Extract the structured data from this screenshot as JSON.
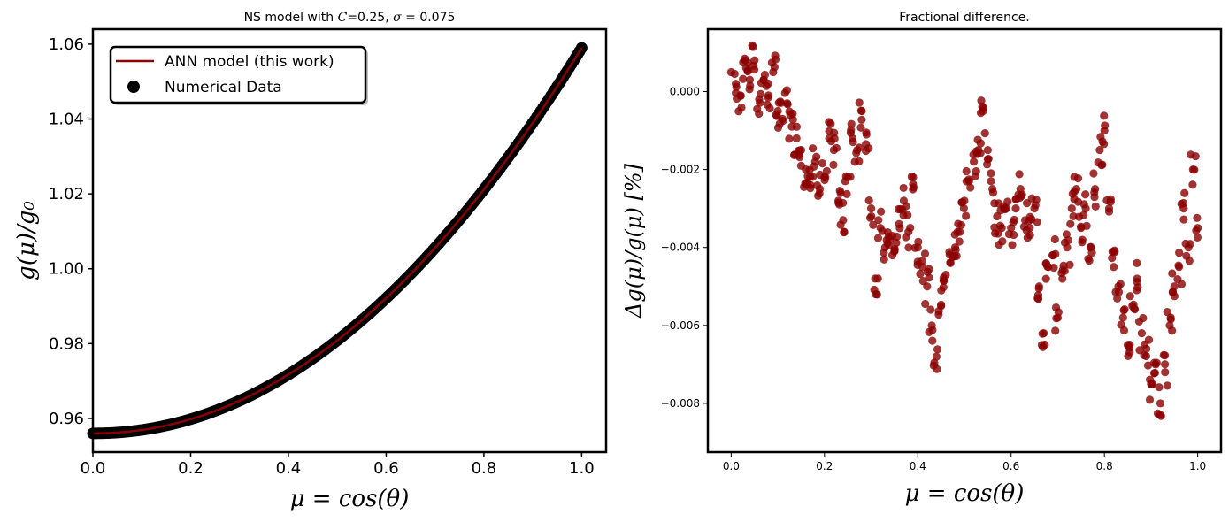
{
  "chart_data": [
    {
      "type": "line",
      "title_prefix": "NS model with ",
      "title_c": "C",
      "title_mid": "=0.25, ",
      "title_sigma": "σ",
      "title_suffix": " = 0.075",
      "xlabel": "μ = cos(θ)",
      "ylabel": "g(μ)/g₀",
      "xlim": [
        0.0,
        1.05
      ],
      "ylim": [
        0.951,
        1.064
      ],
      "xticks": [
        "0.0",
        "0.2",
        "0.4",
        "0.6",
        "0.8",
        "1.0"
      ],
      "yticks": [
        "0.96",
        "0.98",
        "1.00",
        "1.02",
        "1.04",
        "1.06"
      ],
      "legend_position": "top-left",
      "legend": [
        "ANN model (this work)",
        "Numerical Data"
      ],
      "colors": {
        "line": "#8b0000",
        "points": "#000000"
      },
      "series": [
        {
          "name": "ANN model (this work)",
          "x": [
            0.0,
            0.05,
            0.1,
            0.15,
            0.2,
            0.25,
            0.3,
            0.35,
            0.4,
            0.45,
            0.5,
            0.55,
            0.6,
            0.65,
            0.7,
            0.75,
            0.8,
            0.85,
            0.9,
            0.95,
            1.0
          ],
          "y": [
            0.956,
            0.9563,
            0.9572,
            0.9586,
            0.9606,
            0.9632,
            0.9663,
            0.97,
            0.9742,
            0.979,
            0.9843,
            0.9902,
            0.9966,
            1.0036,
            1.0111,
            1.0192,
            1.0278,
            1.037,
            1.0467,
            1.057,
            1.059
          ]
        },
        {
          "name": "Numerical Data",
          "x_range": [
            0.0,
            1.0
          ],
          "y_range": [
            0.956,
            1.059
          ]
        }
      ]
    },
    {
      "type": "scatter",
      "title": "Fractional difference.",
      "xlabel": "μ = cos(θ)",
      "ylabel": "Δg(μ)/g(μ) [%]",
      "xlim": [
        -0.05,
        1.05
      ],
      "ylim": [
        -0.00925,
        0.0016
      ],
      "xticks": [
        "0.0",
        "0.2",
        "0.4",
        "0.6",
        "0.8",
        "1.0"
      ],
      "yticks": [
        "0.000",
        "−0.002",
        "−0.004",
        "−0.006",
        "−0.008"
      ],
      "colors": {
        "points": "#8b0000"
      },
      "series": [
        {
          "name": "Fractional difference",
          "x": [
            0.0,
            0.01,
            0.02,
            0.03,
            0.04,
            0.05,
            0.06,
            0.07,
            0.08,
            0.09,
            0.1,
            0.11,
            0.12,
            0.13,
            0.14,
            0.15,
            0.16,
            0.17,
            0.18,
            0.19,
            0.2,
            0.21,
            0.22,
            0.23,
            0.24,
            0.25,
            0.26,
            0.27,
            0.28,
            0.29,
            0.3,
            0.31,
            0.32,
            0.33,
            0.34,
            0.35,
            0.36,
            0.37,
            0.38,
            0.39,
            0.4,
            0.41,
            0.42,
            0.43,
            0.44,
            0.45,
            0.46,
            0.47,
            0.48,
            0.49,
            0.5,
            0.51,
            0.52,
            0.53,
            0.54,
            0.55,
            0.56,
            0.57,
            0.58,
            0.59,
            0.6,
            0.61,
            0.62,
            0.63,
            0.64,
            0.65,
            0.66,
            0.67,
            0.68,
            0.69,
            0.7,
            0.71,
            0.72,
            0.73,
            0.74,
            0.75,
            0.76,
            0.77,
            0.78,
            0.79,
            0.8,
            0.81,
            0.82,
            0.83,
            0.84,
            0.85,
            0.86,
            0.87,
            0.88,
            0.89,
            0.9,
            0.91,
            0.92,
            0.93,
            0.94,
            0.95,
            0.96,
            0.97,
            0.98,
            0.99,
            1.0
          ],
          "y": [
            0.0005,
            0.0002,
            -0.0001,
            0.0008,
            0.0003,
            0.0008,
            -0.0002,
            0.0003,
            -0.0001,
            0.0005,
            -0.0005,
            -0.0007,
            -0.0003,
            -0.0009,
            -0.0012,
            -0.0015,
            -0.002,
            -0.0024,
            -0.0018,
            -0.0025,
            -0.0022,
            -0.0012,
            -0.0015,
            -0.0028,
            -0.0033,
            -0.0022,
            -0.0012,
            -0.0015,
            -0.0005,
            -0.0011,
            -0.003,
            -0.0052,
            -0.0035,
            -0.004,
            -0.0038,
            -0.0041,
            -0.0034,
            -0.0028,
            -0.0036,
            -0.0022,
            -0.004,
            -0.0045,
            -0.005,
            -0.006,
            -0.0068,
            -0.0055,
            -0.0047,
            -0.0044,
            -0.004,
            -0.0036,
            -0.0028,
            -0.0023,
            -0.0018,
            -0.0015,
            -0.0005,
            -0.0015,
            -0.0025,
            -0.0032,
            -0.0035,
            -0.003,
            -0.0035,
            -0.003,
            -0.0025,
            -0.0033,
            -0.0035,
            -0.003,
            -0.005,
            -0.0062,
            -0.0045,
            -0.0042,
            -0.0058,
            -0.0048,
            -0.004,
            -0.003,
            -0.0025,
            -0.0035,
            -0.003,
            -0.004,
            -0.0025,
            -0.0015,
            -0.001,
            -0.003,
            -0.0045,
            -0.005,
            -0.0058,
            -0.0065,
            -0.0055,
            -0.0048,
            -0.0062,
            -0.0066,
            -0.0075,
            -0.007,
            -0.008,
            -0.0072,
            -0.006,
            -0.005,
            -0.0045,
            -0.003,
            -0.004,
            -0.002,
            -0.0035
          ]
        }
      ]
    }
  ]
}
